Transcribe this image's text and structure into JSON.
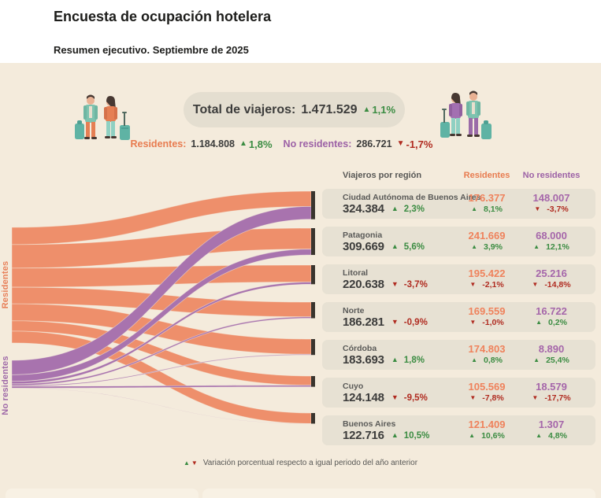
{
  "page": {
    "title": "Encuesta de ocupación hotelera",
    "subtitle": "Resumen ejecutivo. Septiembre de 2025"
  },
  "summary": {
    "total_label": "Total de viajeros:",
    "total_value": "1.471.529",
    "total_delta": {
      "value": "1,1%",
      "dir": "up"
    },
    "residentes_label": "Residentes:",
    "residentes_value": "1.184.808",
    "residentes_delta": {
      "value": "1,8%",
      "dir": "up"
    },
    "no_residentes_label": "No residentes:",
    "no_residentes_value": "286.721",
    "no_residentes_delta": {
      "value": "-1,7%",
      "dir": "down"
    }
  },
  "sankey_labels": {
    "residentes": "Residentes",
    "no_residentes": "No residentes"
  },
  "table": {
    "headers": {
      "region": "Viajeros por región",
      "residentes": "Residentes",
      "no_residentes": "No residentes"
    },
    "rows": [
      {
        "region": "Ciudad Autónoma de Buenos Aires",
        "total": "324.384",
        "total_delta": {
          "value": "2,3%",
          "dir": "up"
        },
        "residentes": "176.377",
        "residentes_delta": {
          "value": "8,1%",
          "dir": "up"
        },
        "no_residentes": "148.007",
        "no_residentes_delta": {
          "value": "-3,7%",
          "dir": "down"
        }
      },
      {
        "region": "Patagonia",
        "total": "309.669",
        "total_delta": {
          "value": "5,6%",
          "dir": "up"
        },
        "residentes": "241.669",
        "residentes_delta": {
          "value": "3,9%",
          "dir": "up"
        },
        "no_residentes": "68.000",
        "no_residentes_delta": {
          "value": "12,1%",
          "dir": "up"
        }
      },
      {
        "region": "Litoral",
        "total": "220.638",
        "total_delta": {
          "value": "-3,7%",
          "dir": "down"
        },
        "residentes": "195.422",
        "residentes_delta": {
          "value": "-2,1%",
          "dir": "down"
        },
        "no_residentes": "25.216",
        "no_residentes_delta": {
          "value": "-14,8%",
          "dir": "down"
        }
      },
      {
        "region": "Norte",
        "total": "186.281",
        "total_delta": {
          "value": "-0,9%",
          "dir": "down"
        },
        "residentes": "169.559",
        "residentes_delta": {
          "value": "-1,0%",
          "dir": "down"
        },
        "no_residentes": "16.722",
        "no_residentes_delta": {
          "value": "0,2%",
          "dir": "up"
        }
      },
      {
        "region": "Córdoba",
        "total": "183.693",
        "total_delta": {
          "value": "1,8%",
          "dir": "up"
        },
        "residentes": "174.803",
        "residentes_delta": {
          "value": "0,8%",
          "dir": "up"
        },
        "no_residentes": "8.890",
        "no_residentes_delta": {
          "value": "25,4%",
          "dir": "up"
        }
      },
      {
        "region": "Cuyo",
        "total": "124.148",
        "total_delta": {
          "value": "-9,5%",
          "dir": "down"
        },
        "residentes": "105.569",
        "residentes_delta": {
          "value": "-7,8%",
          "dir": "down"
        },
        "no_residentes": "18.579",
        "no_residentes_delta": {
          "value": "-17,7%",
          "dir": "down"
        }
      },
      {
        "region": "Buenos Aires",
        "total": "122.716",
        "total_delta": {
          "value": "10,5%",
          "dir": "up"
        },
        "residentes": "121.409",
        "residentes_delta": {
          "value": "10,6%",
          "dir": "up"
        },
        "no_residentes": "1.307",
        "no_residentes_delta": {
          "value": "4,8%",
          "dir": "up"
        }
      }
    ]
  },
  "legend": {
    "text": "Variación porcentual respecto a igual periodo del año anterior"
  },
  "colors": {
    "orange_flow": "#EE8F6B",
    "purple_flow": "#A873AE",
    "orange_text": "#E87C50",
    "purple_text": "#9C61A6",
    "green": "#3B8C42",
    "red": "#B02B20",
    "beige": "#F4EBDC",
    "card": "#E7E1D3",
    "node_bar": "#3A352E"
  },
  "chart_data": {
    "type": "sankey",
    "sources": [
      {
        "name": "Residentes",
        "total": 1184808
      },
      {
        "name": "No residentes",
        "total": 286721
      }
    ],
    "targets": [
      "Ciudad Autónoma de Buenos Aires",
      "Patagonia",
      "Litoral",
      "Norte",
      "Córdoba",
      "Cuyo",
      "Buenos Aires"
    ],
    "series": [
      {
        "name": "Residentes",
        "values": [
          176377,
          241669,
          195422,
          169559,
          174803,
          105569,
          121409
        ]
      },
      {
        "name": "No residentes",
        "values": [
          148007,
          68000,
          25216,
          16722,
          8890,
          18579,
          1307
        ]
      }
    ],
    "target_totals": [
      324384,
      309669,
      220638,
      186281,
      183693,
      124148,
      122716
    ]
  }
}
